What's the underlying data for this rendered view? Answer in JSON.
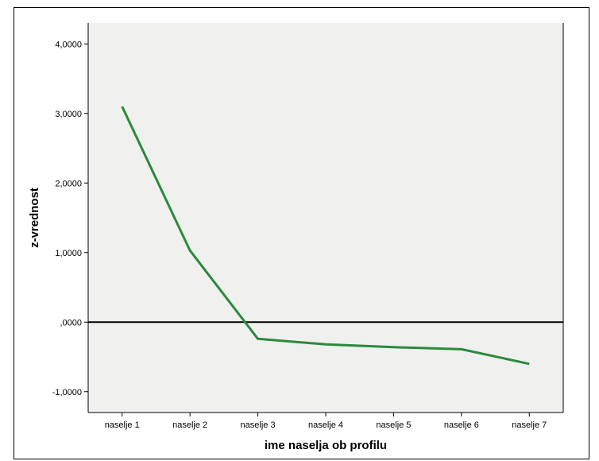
{
  "chart_data": {
    "type": "line",
    "categories": [
      "naselje 1",
      "naselje 2",
      "naselje 3",
      "naselje 4",
      "naselje 5",
      "naselje 6",
      "naselje 7"
    ],
    "series": [
      {
        "values": [
          3.1,
          1.03,
          -0.24,
          -0.32,
          -0.36,
          -0.39,
          -0.6
        ]
      }
    ],
    "reference_line": 0,
    "xlabel": "ime naselja ob profilu",
    "ylabel": "z-vrednost",
    "ylim": [
      -1.3,
      4.3
    ],
    "yticks": [
      -1,
      0,
      1,
      2,
      3,
      4
    ],
    "ytick_labels": [
      "-1,0000",
      ",0000",
      "1,0000",
      "2,0000",
      "3,0000",
      "4,0000"
    ],
    "grid": false,
    "legend": "none",
    "colors": {
      "line": "#2a8a3e",
      "plot_background": "#f0f0ee",
      "reference_line": "#000000"
    }
  }
}
